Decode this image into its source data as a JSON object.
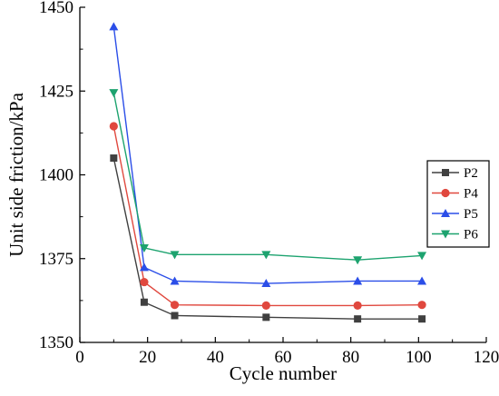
{
  "chart_data": {
    "type": "line",
    "title": "",
    "xlabel": "Cycle number",
    "ylabel": "Unit side friction/kPa",
    "xlim": [
      0,
      120
    ],
    "ylim": [
      1350,
      1450
    ],
    "xticks": [
      0,
      20,
      40,
      60,
      80,
      100,
      120
    ],
    "yticks": [
      1350,
      1375,
      1400,
      1425,
      1450
    ],
    "grid": false,
    "legend_position": "right",
    "x": [
      10,
      19,
      28,
      55,
      82,
      101
    ],
    "series": [
      {
        "name": "P2",
        "color": "#404040",
        "marker": "square",
        "values": [
          1405,
          1362,
          1358,
          1357.5,
          1357,
          1357
        ]
      },
      {
        "name": "P4",
        "color": "#e0483e",
        "marker": "circle",
        "values": [
          1414.5,
          1368,
          1361.2,
          1361,
          1361,
          1361.2
        ]
      },
      {
        "name": "P5",
        "color": "#2b4ee8",
        "marker": "triangle-up",
        "values": [
          1444.2,
          1372.4,
          1368.3,
          1367.6,
          1368.3,
          1368.3
        ]
      },
      {
        "name": "P6",
        "color": "#1da36f",
        "marker": "triangle-down",
        "values": [
          1424.5,
          1378.2,
          1376.2,
          1376.2,
          1374.6,
          1375.9
        ]
      }
    ]
  }
}
